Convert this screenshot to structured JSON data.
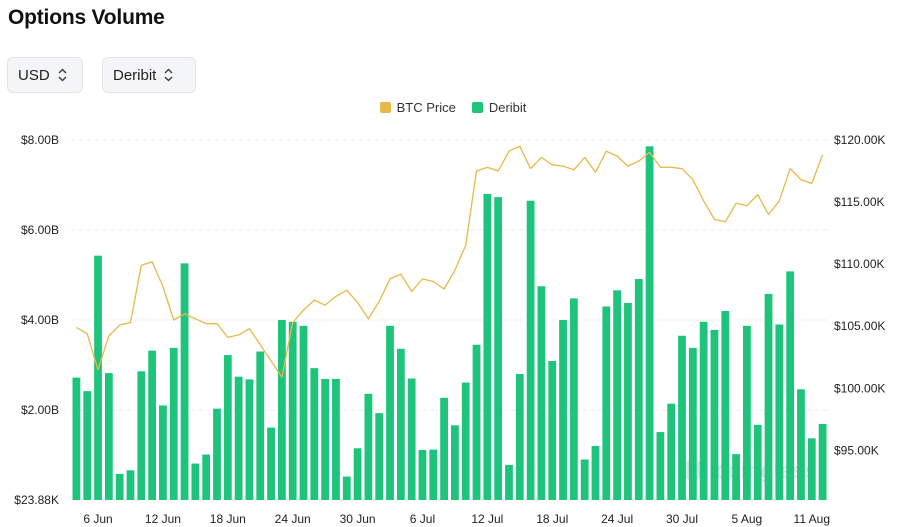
{
  "header": {
    "title": "Options Volume"
  },
  "filters": {
    "currency": {
      "value": "USD"
    },
    "exchange": {
      "value": "Deribit"
    }
  },
  "watermark": "coinglass",
  "colors": {
    "deribit": "#1ec47c",
    "btc_price": "#e8b84a",
    "grid": "#e9ecef"
  },
  "chart_data": {
    "type": "bar",
    "legend": [
      "BTC Price",
      "Deribit"
    ],
    "legend_position": "top-center",
    "grid": true,
    "x_start": "2025-06-04",
    "x_end": "2025-08-12",
    "x_tick_labels": [
      "6 Jun",
      "12 Jun",
      "18 Jun",
      "24 Jun",
      "30 Jun",
      "6 Jul",
      "12 Jul",
      "18 Jul",
      "24 Jul",
      "30 Jul",
      "5 Aug",
      "11 Aug"
    ],
    "y_left": {
      "ticks": [
        0,
        2000000000,
        4000000000,
        6000000000,
        8000000000
      ],
      "tick_labels": [
        "$23.88K",
        "$2.00B",
        "$4.00B",
        "$6.00B",
        "$8.00B"
      ],
      "ylim": [
        0,
        8000000000
      ]
    },
    "y_right": {
      "ticks": [
        95000,
        100000,
        105000,
        110000,
        115000,
        120000
      ],
      "tick_labels": [
        "$95.00K",
        "$100.00K",
        "$105.00K",
        "$110.00K",
        "$115.00K",
        "$120.00K"
      ],
      "ylim": [
        91000,
        120000
      ]
    },
    "series": [
      {
        "name": "Deribit",
        "type": "bar",
        "axis": "left",
        "values": [
          2.72,
          2.42,
          5.43,
          2.82,
          0.58,
          0.66,
          2.86,
          3.32,
          2.1,
          3.38,
          5.26,
          0.81,
          1.01,
          2.03,
          3.22,
          2.74,
          2.68,
          3.3,
          1.61,
          4.0,
          3.96,
          3.87,
          2.93,
          2.69,
          2.69,
          0.52,
          1.15,
          2.36,
          1.93,
          3.87,
          3.36,
          2.7,
          1.11,
          1.12,
          2.27,
          1.66,
          2.61,
          3.45,
          6.8,
          6.73,
          0.78,
          2.8,
          6.65,
          4.75,
          3.09,
          4.0,
          4.48,
          0.9,
          1.2,
          4.3,
          4.66,
          4.38,
          4.91,
          7.86,
          1.51,
          2.14,
          3.65,
          3.38,
          3.96,
          3.78,
          4.2,
          1.02,
          3.87,
          1.67,
          4.58,
          3.9,
          5.08,
          2.46,
          1.37,
          1.69
        ]
      },
      {
        "name": "BTC Price",
        "type": "line",
        "axis": "right",
        "values": [
          104900,
          104400,
          101500,
          104200,
          105100,
          105300,
          109900,
          110200,
          108200,
          105500,
          106000,
          105600,
          105200,
          105200,
          104100,
          104300,
          104800,
          103500,
          102200,
          100900,
          105300,
          106300,
          107100,
          106700,
          107400,
          107900,
          106900,
          105600,
          107000,
          108800,
          109200,
          107800,
          108800,
          108600,
          108000,
          109500,
          111500,
          117500,
          117800,
          117500,
          119100,
          119500,
          117700,
          118600,
          118000,
          117900,
          117600,
          118600,
          117400,
          119100,
          118700,
          117900,
          118300,
          119000,
          117800,
          117800,
          117700,
          116800,
          115100,
          113600,
          113400,
          114900,
          114700,
          115600,
          114000,
          115100,
          117700,
          116800,
          116500,
          118800
        ]
      }
    ]
  }
}
